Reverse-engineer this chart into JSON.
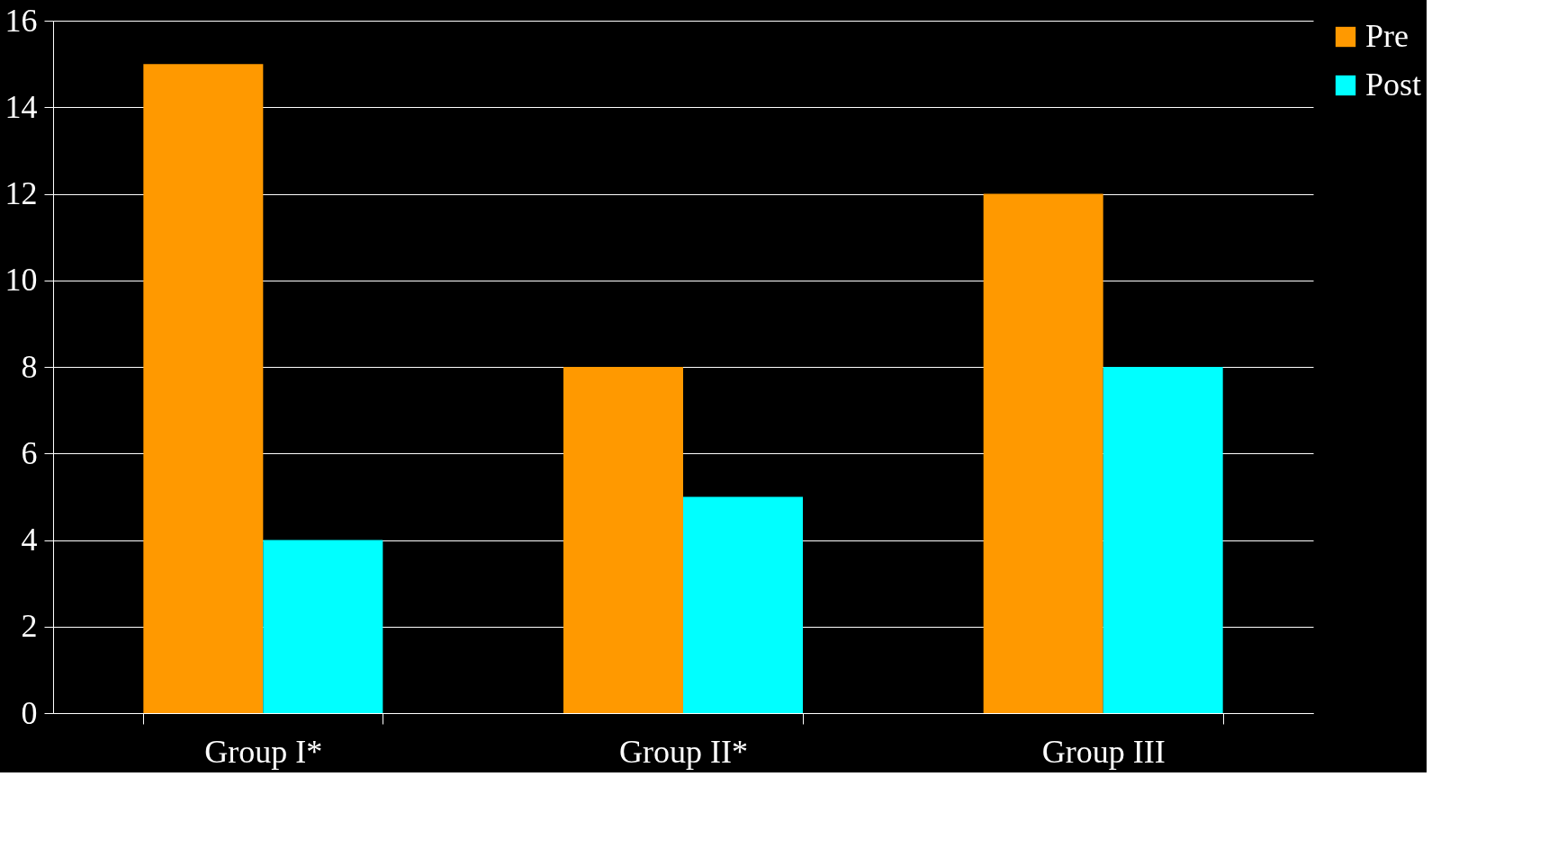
{
  "chart_data": {
    "type": "bar",
    "categories": [
      "Group I*",
      "Group II*",
      "Group III"
    ],
    "series": [
      {
        "name": "Pre",
        "color": "#ff9900",
        "values": [
          15,
          8,
          12
        ]
      },
      {
        "name": "Post",
        "color": "#00ffff",
        "values": [
          4,
          5,
          8
        ]
      }
    ],
    "ylim": [
      0,
      16
    ],
    "yticks": [
      0,
      2,
      4,
      6,
      8,
      10,
      12,
      14,
      16
    ],
    "grid": "y",
    "legend": "right"
  }
}
